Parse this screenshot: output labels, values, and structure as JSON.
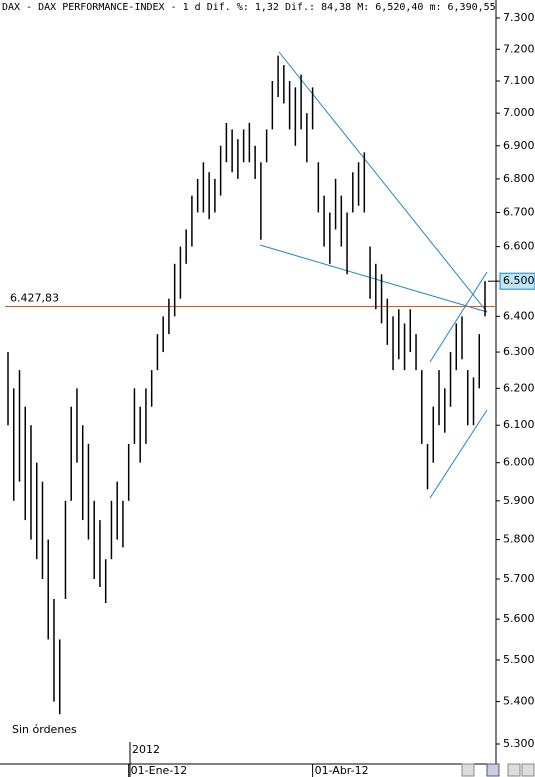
{
  "chart_data": {
    "type": "ohlc",
    "title": "DAX - DAX PERFORMANCE-INDEX -  1 d Dif. %: 1,32 Dif.: 84,38 M: 6,520,40 m: 6,390,55",
    "annotations": [
      "Sin órdenes",
      "2012"
    ],
    "categories": [
      null,
      null,
      null,
      null,
      null,
      null,
      null,
      null,
      null,
      null,
      null,
      null,
      null,
      null,
      null,
      null,
      null,
      null,
      null,
      null,
      null,
      "01-Ene-12",
      null,
      null,
      null,
      null,
      null,
      null,
      null,
      null,
      null,
      null,
      null,
      null,
      null,
      null,
      null,
      null,
      null,
      null,
      null,
      null,
      null,
      null,
      null,
      null,
      null,
      null,
      null,
      null,
      null,
      null,
      null,
      "01-Abr-12",
      null,
      null,
      null,
      null,
      null,
      null,
      null,
      null,
      null,
      null,
      null,
      null,
      null,
      null,
      null,
      null,
      null,
      null,
      null,
      null,
      null,
      null,
      null,
      null,
      null,
      null,
      null,
      null,
      null,
      null
    ],
    "high": [
      6300,
      6200,
      6250,
      6150,
      6100,
      6000,
      5950,
      5800,
      5650,
      5550,
      5900,
      6150,
      6200,
      6100,
      6050,
      5900,
      5850,
      5750,
      5900,
      5950,
      5900,
      6050,
      6200,
      6150,
      6200,
      6250,
      6350,
      6400,
      6450,
      6550,
      6600,
      6650,
      6750,
      6800,
      6850,
      6820,
      6800,
      6900,
      6970,
      6950,
      6920,
      6950,
      6970,
      6900,
      6850,
      6950,
      7100,
      7180,
      7150,
      7100,
      7080,
      7120,
      7000,
      7080,
      6850,
      6750,
      6700,
      6800,
      6750,
      6700,
      6820,
      6850,
      6880,
      6600,
      6550,
      6520,
      6450,
      6400,
      6420,
      6380,
      6420,
      6350,
      6250,
      6050,
      6150,
      6250,
      6200,
      6300,
      6380,
      6400,
      6250,
      6230,
      6350,
      6500
    ],
    "low": [
      6100,
      5900,
      5950,
      5850,
      5800,
      5750,
      5700,
      5550,
      5400,
      5370,
      5650,
      5900,
      6000,
      5850,
      5800,
      5700,
      5680,
      5640,
      5750,
      5800,
      5780,
      5900,
      6050,
      6000,
      6050,
      6150,
      6250,
      6300,
      6350,
      6400,
      6450,
      6550,
      6600,
      6700,
      6700,
      6680,
      6700,
      6750,
      6850,
      6820,
      6800,
      6850,
      6850,
      6800,
      6620,
      6850,
      6950,
      7050,
      7030,
      6950,
      6900,
      6950,
      6850,
      6950,
      6700,
      6600,
      6550,
      6650,
      6600,
      6520,
      6700,
      6720,
      6700,
      6450,
      6420,
      6380,
      6320,
      6250,
      6280,
      6250,
      6300,
      6250,
      6050,
      5930,
      6000,
      6100,
      6080,
      6150,
      6250,
      6280,
      6100,
      6100,
      6200,
      6400
    ],
    "color": "#000000",
    "log_scale": true,
    "ylim": [
      5300,
      7300
    ],
    "yticks": [
      {
        "value": 5300,
        "label": "5.300"
      },
      {
        "value": 5400,
        "label": "5.400"
      },
      {
        "value": 5500,
        "label": "5.500"
      },
      {
        "value": 5600,
        "label": "5.600"
      },
      {
        "value": 5700,
        "label": "5.700"
      },
      {
        "value": 5800,
        "label": "5.800"
      },
      {
        "value": 5900,
        "label": "5.900"
      },
      {
        "value": 6000,
        "label": "6.000"
      },
      {
        "value": 6100,
        "label": "6.100"
      },
      {
        "value": 6200,
        "label": "6.200"
      },
      {
        "value": 6300,
        "label": "6.300"
      },
      {
        "value": 6400,
        "label": "6.400"
      },
      {
        "value": 6500,
        "label": "6.500"
      },
      {
        "value": 6600,
        "label": "6.600"
      },
      {
        "value": 6700,
        "label": "6.700"
      },
      {
        "value": 6800,
        "label": "6.800"
      },
      {
        "value": 6900,
        "label": "6.900"
      },
      {
        "value": 7000,
        "label": "7.000"
      },
      {
        "value": 7100,
        "label": "7.100"
      },
      {
        "value": 7200,
        "label": "7.200"
      },
      {
        "value": 7300,
        "label": "7.300"
      }
    ],
    "hline": {
      "value": 6427.83,
      "label": "6.427,83",
      "color": "#e8561c"
    },
    "price_marker": {
      "value": 6500,
      "label": "6.500",
      "color": "#bfe3f7"
    }
  }
}
